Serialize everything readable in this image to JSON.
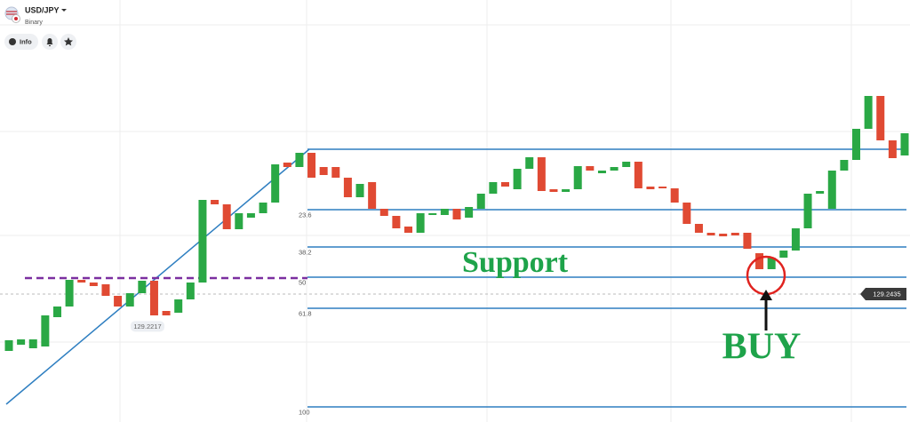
{
  "header": {
    "symbol": "USD/JPY",
    "mode": "Binary",
    "info_button": "Info"
  },
  "chart_data": {
    "type": "candlestick",
    "ylim": [
      129.1571,
      129.4421
    ],
    "up_color": "#2aa845",
    "down_color": "#e04a33",
    "open": [
      129.2051,
      129.2093,
      129.2069,
      129.2081,
      129.2279,
      129.2351,
      129.2531,
      129.2513,
      129.2501,
      129.2423,
      129.2351,
      129.2441,
      129.2525,
      129.2321,
      129.2309,
      129.2399,
      129.2513,
      129.3071,
      129.3041,
      129.2873,
      129.2951,
      129.2981,
      129.3053,
      129.3323,
      129.3293,
      129.3389,
      129.3293,
      129.3293,
      129.3221,
      129.3089,
      129.3191,
      129.3011,
      129.2963,
      129.2891,
      129.2849,
      129.2969,
      129.2969,
      129.3011,
      129.2951,
      129.3011,
      129.3113,
      129.3191,
      129.3143,
      129.3281,
      129.3359,
      129.3143,
      129.3125,
      129.3143,
      129.3299,
      129.3251,
      129.3269,
      129.3293,
      129.3329,
      129.3161,
      129.3161,
      129.3149,
      129.3053,
      129.2909,
      129.2849,
      129.2843,
      129.2849,
      129.2849,
      129.2711,
      129.2603,
      129.2681,
      129.2729,
      129.2879,
      129.3113,
      129.3011,
      129.3269,
      129.3341,
      129.3551,
      129.3773,
      129.3473,
      129.3371
    ],
    "close": [
      129.2123,
      129.2129,
      129.2129,
      129.2291,
      129.2351,
      129.2531,
      129.2513,
      129.2489,
      129.2423,
      129.2351,
      129.2441,
      129.2525,
      129.2291,
      129.2291,
      129.2399,
      129.2513,
      129.3071,
      129.3041,
      129.2873,
      129.2981,
      129.2981,
      129.3053,
      129.3311,
      129.3293,
      129.3389,
      129.3221,
      129.3239,
      129.3221,
      129.3089,
      129.3179,
      129.3011,
      129.2963,
      129.2879,
      129.2849,
      129.2981,
      129.2981,
      129.3011,
      129.2939,
      129.3023,
      129.3113,
      129.3191,
      129.3161,
      129.3281,
      129.3359,
      129.3131,
      129.3125,
      129.3143,
      129.3299,
      129.3269,
      129.3269,
      129.3293,
      129.3329,
      129.3149,
      129.3143,
      129.3149,
      129.3053,
      129.2909,
      129.2849,
      129.2831,
      129.2825,
      129.2831,
      129.2741,
      129.2603,
      129.2681,
      129.2729,
      129.2879,
      129.3113,
      129.3131,
      129.3269,
      129.3341,
      129.3551,
      129.3773,
      129.3473,
      129.3353,
      129.3521
    ],
    "levels": [
      {
        "price": 129.3413,
        "label": null
      },
      {
        "price": 129.3005,
        "label": "23.6"
      },
      {
        "price": 129.2753,
        "label": "38.2"
      },
      {
        "price": 129.2549,
        "label": "50"
      },
      {
        "price": 129.2339,
        "label": "61.8"
      },
      {
        "price": 129.1673,
        "label": "100"
      }
    ],
    "level_color": "#2f7fc1",
    "trendline": {
      "start": 129.1691,
      "end": 129.3413
    },
    "resistance": 129.2543,
    "resistance_color": "#7b2fa0",
    "current_price": 129.2435,
    "low_price": 129.2217,
    "support_text": "Support",
    "buy_text": "BUY",
    "annotation_color": "#1ea34a"
  }
}
